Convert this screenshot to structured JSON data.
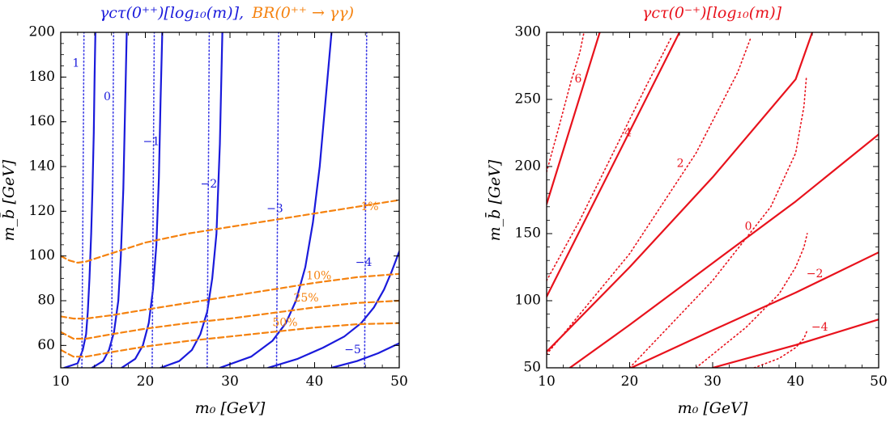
{
  "chart_data": [
    {
      "type": "line",
      "title": {
        "blue_part": "γcτ(0⁺⁺)[log₁₀(m)],",
        "orange_part": "BR(0⁺⁺ → γγ)"
      },
      "xlabel": "m₀ [GeV]",
      "ylabel": "m_b̄ [GeV]",
      "xlim": [
        10,
        50
      ],
      "ylim": [
        50,
        200
      ],
      "xticks": [
        "10",
        "20",
        "30",
        "40",
        "50"
      ],
      "yticks": [
        "60",
        "80",
        "100",
        "120",
        "140",
        "160",
        "180",
        "200"
      ],
      "colors": {
        "decay_solid": "#1a1adb",
        "decay_dotted": "#3a3ae6",
        "br_dashed": "#f5820f",
        "axes": "#000000"
      },
      "series": [
        {
          "label": "1",
          "style": "solid",
          "x": [
            10.4,
            12.0,
            12.6,
            13.0,
            13.2,
            13.4,
            13.6,
            13.75,
            13.9,
            14.0,
            14.1
          ],
          "y": [
            50,
            52,
            58,
            65,
            75,
            90,
            110,
            130,
            155,
            180,
            200
          ]
        },
        {
          "label": "1",
          "style": "dotted",
          "x": [
            12.5,
            12.55,
            12.6,
            12.65,
            12.7,
            12.75
          ],
          "y": [
            50,
            80,
            110,
            140,
            170,
            200
          ]
        },
        {
          "label": "0",
          "style": "solid",
          "x": [
            13.7,
            15.0,
            15.7,
            16.3,
            16.8,
            17.1,
            17.4,
            17.6,
            17.8
          ],
          "y": [
            50,
            53,
            58,
            66,
            80,
            100,
            130,
            165,
            200
          ]
        },
        {
          "label": "0",
          "style": "dotted",
          "x": [
            16.0,
            16.05,
            16.1,
            16.15,
            16.2,
            16.25
          ],
          "y": [
            50,
            80,
            110,
            140,
            170,
            200
          ]
        },
        {
          "label": "−1",
          "style": "solid",
          "x": [
            17.2,
            18.8,
            19.7,
            20.4,
            20.9,
            21.3,
            21.6,
            21.8,
            22.0
          ],
          "y": [
            50,
            54,
            60,
            70,
            85,
            105,
            135,
            170,
            200
          ]
        },
        {
          "label": "−1",
          "style": "dotted",
          "x": [
            20.8,
            20.85,
            20.9,
            20.95,
            21.0,
            21.05
          ],
          "y": [
            50,
            80,
            110,
            140,
            170,
            200
          ]
        },
        {
          "label": "−2",
          "style": "solid",
          "x": [
            21.8,
            24.0,
            25.5,
            26.5,
            27.3,
            27.9,
            28.4,
            28.8,
            29.1
          ],
          "y": [
            50,
            53,
            58,
            65,
            75,
            90,
            110,
            150,
            200
          ]
        },
        {
          "label": "−2",
          "style": "dotted",
          "x": [
            27.3,
            27.35,
            27.4,
            27.45,
            27.5,
            27.55
          ],
          "y": [
            50,
            80,
            110,
            140,
            170,
            200
          ]
        },
        {
          "label": "−3",
          "style": "solid",
          "x": [
            28.8,
            32.5,
            35.0,
            36.6,
            37.8,
            38.9,
            39.8,
            40.6,
            41.3,
            42.0
          ],
          "y": [
            50,
            55,
            62,
            70,
            80,
            95,
            115,
            140,
            170,
            200
          ]
        },
        {
          "label": "−3",
          "style": "dotted",
          "x": [
            35.5,
            35.55,
            35.6,
            35.65,
            35.7,
            35.75
          ],
          "y": [
            50,
            80,
            110,
            140,
            170,
            200
          ]
        },
        {
          "label": "−4",
          "style": "solid",
          "x": [
            34.5,
            38.0,
            41.0,
            43.5,
            45.5,
            47.0,
            48.2,
            49.1,
            50.0
          ],
          "y": [
            50,
            54,
            59,
            64,
            70,
            77,
            85,
            93,
            102
          ]
        },
        {
          "label": "−4",
          "style": "dotted",
          "x": [
            45.9,
            45.95,
            46.0,
            46.05,
            46.1,
            46.15
          ],
          "y": [
            50,
            80,
            110,
            140,
            170,
            200
          ]
        },
        {
          "label": "−5",
          "style": "solid",
          "x": [
            42.0,
            45.0,
            47.5,
            50.0
          ],
          "y": [
            50,
            53,
            56.5,
            61
          ]
        },
        {
          "label": "1%",
          "style": "dashed",
          "x": [
            10.0,
            11.0,
            12.0,
            13.0,
            15.0,
            20.0,
            25.0,
            30.0,
            35.0,
            40.0,
            45.0,
            50.0
          ],
          "y": [
            100,
            98,
            97,
            97.5,
            100,
            106,
            110,
            113,
            116,
            119,
            122,
            125
          ]
        },
        {
          "label": "10%",
          "style": "dashed",
          "x": [
            10.0,
            11.5,
            13.0,
            16.0,
            20.0,
            25.0,
            30.0,
            35.0,
            40.0,
            45.0,
            50.0
          ],
          "y": [
            73,
            72,
            72,
            73.5,
            76,
            79,
            82,
            85,
            88,
            90.5,
            92
          ]
        },
        {
          "label": "25%",
          "style": "dashed",
          "x": [
            10.0,
            11.5,
            13.0,
            16.0,
            20.0,
            25.0,
            30.0,
            35.0,
            40.0,
            45.0,
            50.0
          ],
          "y": [
            66,
            63,
            63,
            65,
            67.5,
            70,
            72,
            74.5,
            77,
            79,
            80
          ]
        },
        {
          "label": "50%",
          "style": "dashed",
          "x": [
            10.0,
            11.5,
            13.0,
            16.0,
            20.0,
            25.0,
            30.0,
            35.0,
            40.0,
            45.0,
            50.0
          ],
          "y": [
            58,
            55,
            55,
            57,
            59.5,
            62,
            64,
            66,
            68,
            69.5,
            70
          ]
        }
      ],
      "annotations": [
        {
          "text": "1",
          "x": 11.8,
          "y": 186,
          "color": "#1a1adb"
        },
        {
          "text": "0",
          "x": 15.5,
          "y": 171,
          "color": "#1a1adb"
        },
        {
          "text": "−1",
          "x": 20.7,
          "y": 151,
          "color": "#1a1adb"
        },
        {
          "text": "−2",
          "x": 27.5,
          "y": 132,
          "color": "#1a1adb"
        },
        {
          "text": "−3",
          "x": 35.3,
          "y": 121,
          "color": "#1a1adb"
        },
        {
          "text": "−4",
          "x": 45.8,
          "y": 97,
          "color": "#1a1adb"
        },
        {
          "text": "−5",
          "x": 44.5,
          "y": 58,
          "color": "#1a1adb"
        },
        {
          "text": "1%",
          "x": 46.5,
          "y": 122,
          "color": "#f5820f"
        },
        {
          "text": "10%",
          "x": 40.5,
          "y": 91,
          "color": "#f5820f"
        },
        {
          "text": "25%",
          "x": 39.0,
          "y": 81,
          "color": "#f5820f"
        },
        {
          "text": "50%",
          "x": 36.5,
          "y": 70,
          "color": "#f5820f"
        }
      ]
    },
    {
      "type": "line",
      "title": {
        "red_part": "γcτ(0⁻⁺)[log₁₀(m)]"
      },
      "xlabel": "m₀ [GeV]",
      "ylabel": "m_b̄ [GeV]",
      "xlim": [
        10,
        50
      ],
      "ylim": [
        50,
        300
      ],
      "xticks": [
        "10",
        "20",
        "30",
        "40",
        "50"
      ],
      "yticks": [
        "50",
        "100",
        "150",
        "200",
        "250",
        "300"
      ],
      "colors": {
        "solid": "#e8121c",
        "dotted": "#e8121c",
        "axes": "#000000"
      },
      "series": [
        {
          "label": "6",
          "style": "solid",
          "x": [
            10.0,
            16.4
          ],
          "y": [
            172,
            300
          ]
        },
        {
          "label": "6",
          "style": "dotted",
          "x": [
            10.0,
            11.5,
            13.0,
            14.0,
            14.5
          ],
          "y": [
            196,
            230,
            265,
            285,
            300
          ]
        },
        {
          "label": "4",
          "style": "solid",
          "x": [
            10.0,
            26.0
          ],
          "y": [
            103,
            300
          ]
        },
        {
          "label": "4",
          "style": "dotted",
          "x": [
            10.0,
            14.0,
            18.0,
            22.0,
            25.0
          ],
          "y": [
            115,
            160,
            210,
            260,
            296
          ]
        },
        {
          "label": "2",
          "style": "solid",
          "x": [
            10.0,
            20.0,
            30.0,
            40.0,
            42.0
          ],
          "y": [
            62,
            125,
            192,
            265,
            300
          ]
        },
        {
          "label": "2",
          "style": "dotted",
          "x": [
            10.0,
            20.0,
            28.0,
            33.0,
            34.6
          ],
          "y": [
            60,
            135,
            210,
            270,
            296
          ]
        },
        {
          "label": "0",
          "style": "solid",
          "x": [
            12.8,
            20.0,
            30.0,
            40.0,
            50.0
          ],
          "y": [
            50,
            82,
            128,
            174,
            224
          ]
        },
        {
          "label": "0",
          "style": "dotted",
          "x": [
            20.0,
            30.0,
            37.0,
            40.0,
            41.0,
            41.3
          ],
          "y": [
            50,
            115,
            170,
            210,
            245,
            267
          ]
        },
        {
          "label": "−2",
          "style": "solid",
          "x": [
            20.2,
            30.0,
            40.0,
            50.0
          ],
          "y": [
            50,
            78,
            106,
            136
          ]
        },
        {
          "label": "−2",
          "style": "dotted",
          "x": [
            28.0,
            34.0,
            38.0,
            40.0,
            41.0,
            41.4
          ],
          "y": [
            50,
            80,
            105,
            125,
            140,
            150
          ]
        },
        {
          "label": "−4",
          "style": "solid",
          "x": [
            30.0,
            40.0,
            50.0
          ],
          "y": [
            50,
            67,
            86
          ]
        },
        {
          "label": "−4",
          "style": "dotted",
          "x": [
            35.0,
            38.0,
            40.0,
            41.0,
            41.4
          ],
          "y": [
            50,
            57,
            65,
            72,
            78
          ]
        }
      ],
      "annotations": [
        {
          "text": "6",
          "x": 13.8,
          "y": 265,
          "color": "#e8121c"
        },
        {
          "text": "4",
          "x": 19.8,
          "y": 225,
          "color": "#e8121c"
        },
        {
          "text": "2",
          "x": 26.1,
          "y": 202,
          "color": "#e8121c"
        },
        {
          "text": "0",
          "x": 34.3,
          "y": 155,
          "color": "#e8121c"
        },
        {
          "text": "−2",
          "x": 42.3,
          "y": 120,
          "color": "#e8121c"
        },
        {
          "text": "−4",
          "x": 42.9,
          "y": 80,
          "color": "#e8121c"
        }
      ]
    }
  ]
}
